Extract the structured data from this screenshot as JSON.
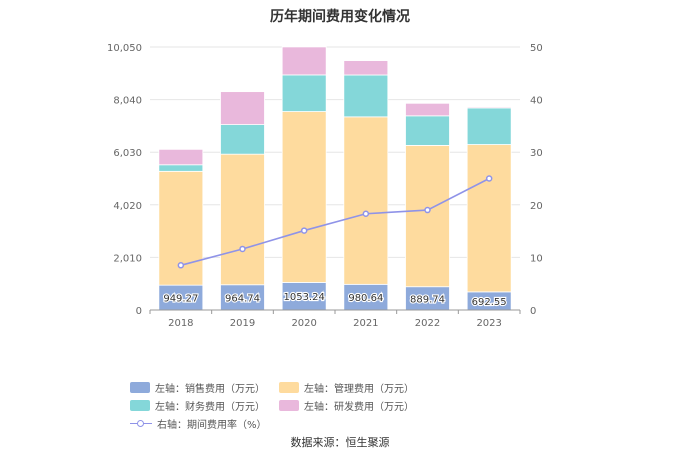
{
  "chart_data": {
    "type": "bar",
    "title": "历年期间费用变化情况",
    "categories": [
      "2018",
      "2019",
      "2020",
      "2021",
      "2022",
      "2023"
    ],
    "series": [
      {
        "name": "左轴：销售费用（万元）",
        "axis": "left",
        "type": "stacked-bar",
        "color": "#8eaadb",
        "values": [
          949.27,
          964.74,
          1053.24,
          980.64,
          889.74,
          692.55
        ]
      },
      {
        "name": "左轴：管理费用（万元）",
        "axis": "left",
        "type": "stacked-bar",
        "color": "#fedb9e",
        "values": [
          4350,
          4990,
          6530,
          6400,
          5400,
          5630
        ]
      },
      {
        "name": "左轴：财务费用（万元）",
        "axis": "left",
        "type": "stacked-bar",
        "color": "#84d7d9",
        "values": [
          250,
          1130,
          1400,
          1600,
          1130,
          1400
        ]
      },
      {
        "name": "左轴：研发费用（万元）",
        "axis": "left",
        "type": "stacked-bar",
        "color": "#e9b8dc",
        "values": [
          590,
          1260,
          1070,
          550,
          480,
          40
        ]
      },
      {
        "name": "右轴：期间费用率（%）",
        "axis": "right",
        "type": "line",
        "color": "#8f93e8",
        "values": [
          8.5,
          11.6,
          15.1,
          18.3,
          19.0,
          25.0
        ]
      }
    ],
    "left_axis": {
      "ticks": [
        "0",
        "2,010",
        "4,020",
        "6,030",
        "8,040",
        "10,050"
      ],
      "max": 10050
    },
    "right_axis": {
      "ticks": [
        "0",
        "10",
        "20",
        "30",
        "40",
        "50"
      ],
      "max": 50
    },
    "data_labels": [
      "949.27",
      "964.74",
      "1053.24",
      "980.64",
      "889.74",
      "692.55"
    ]
  },
  "source": "数据来源：恒生聚源"
}
